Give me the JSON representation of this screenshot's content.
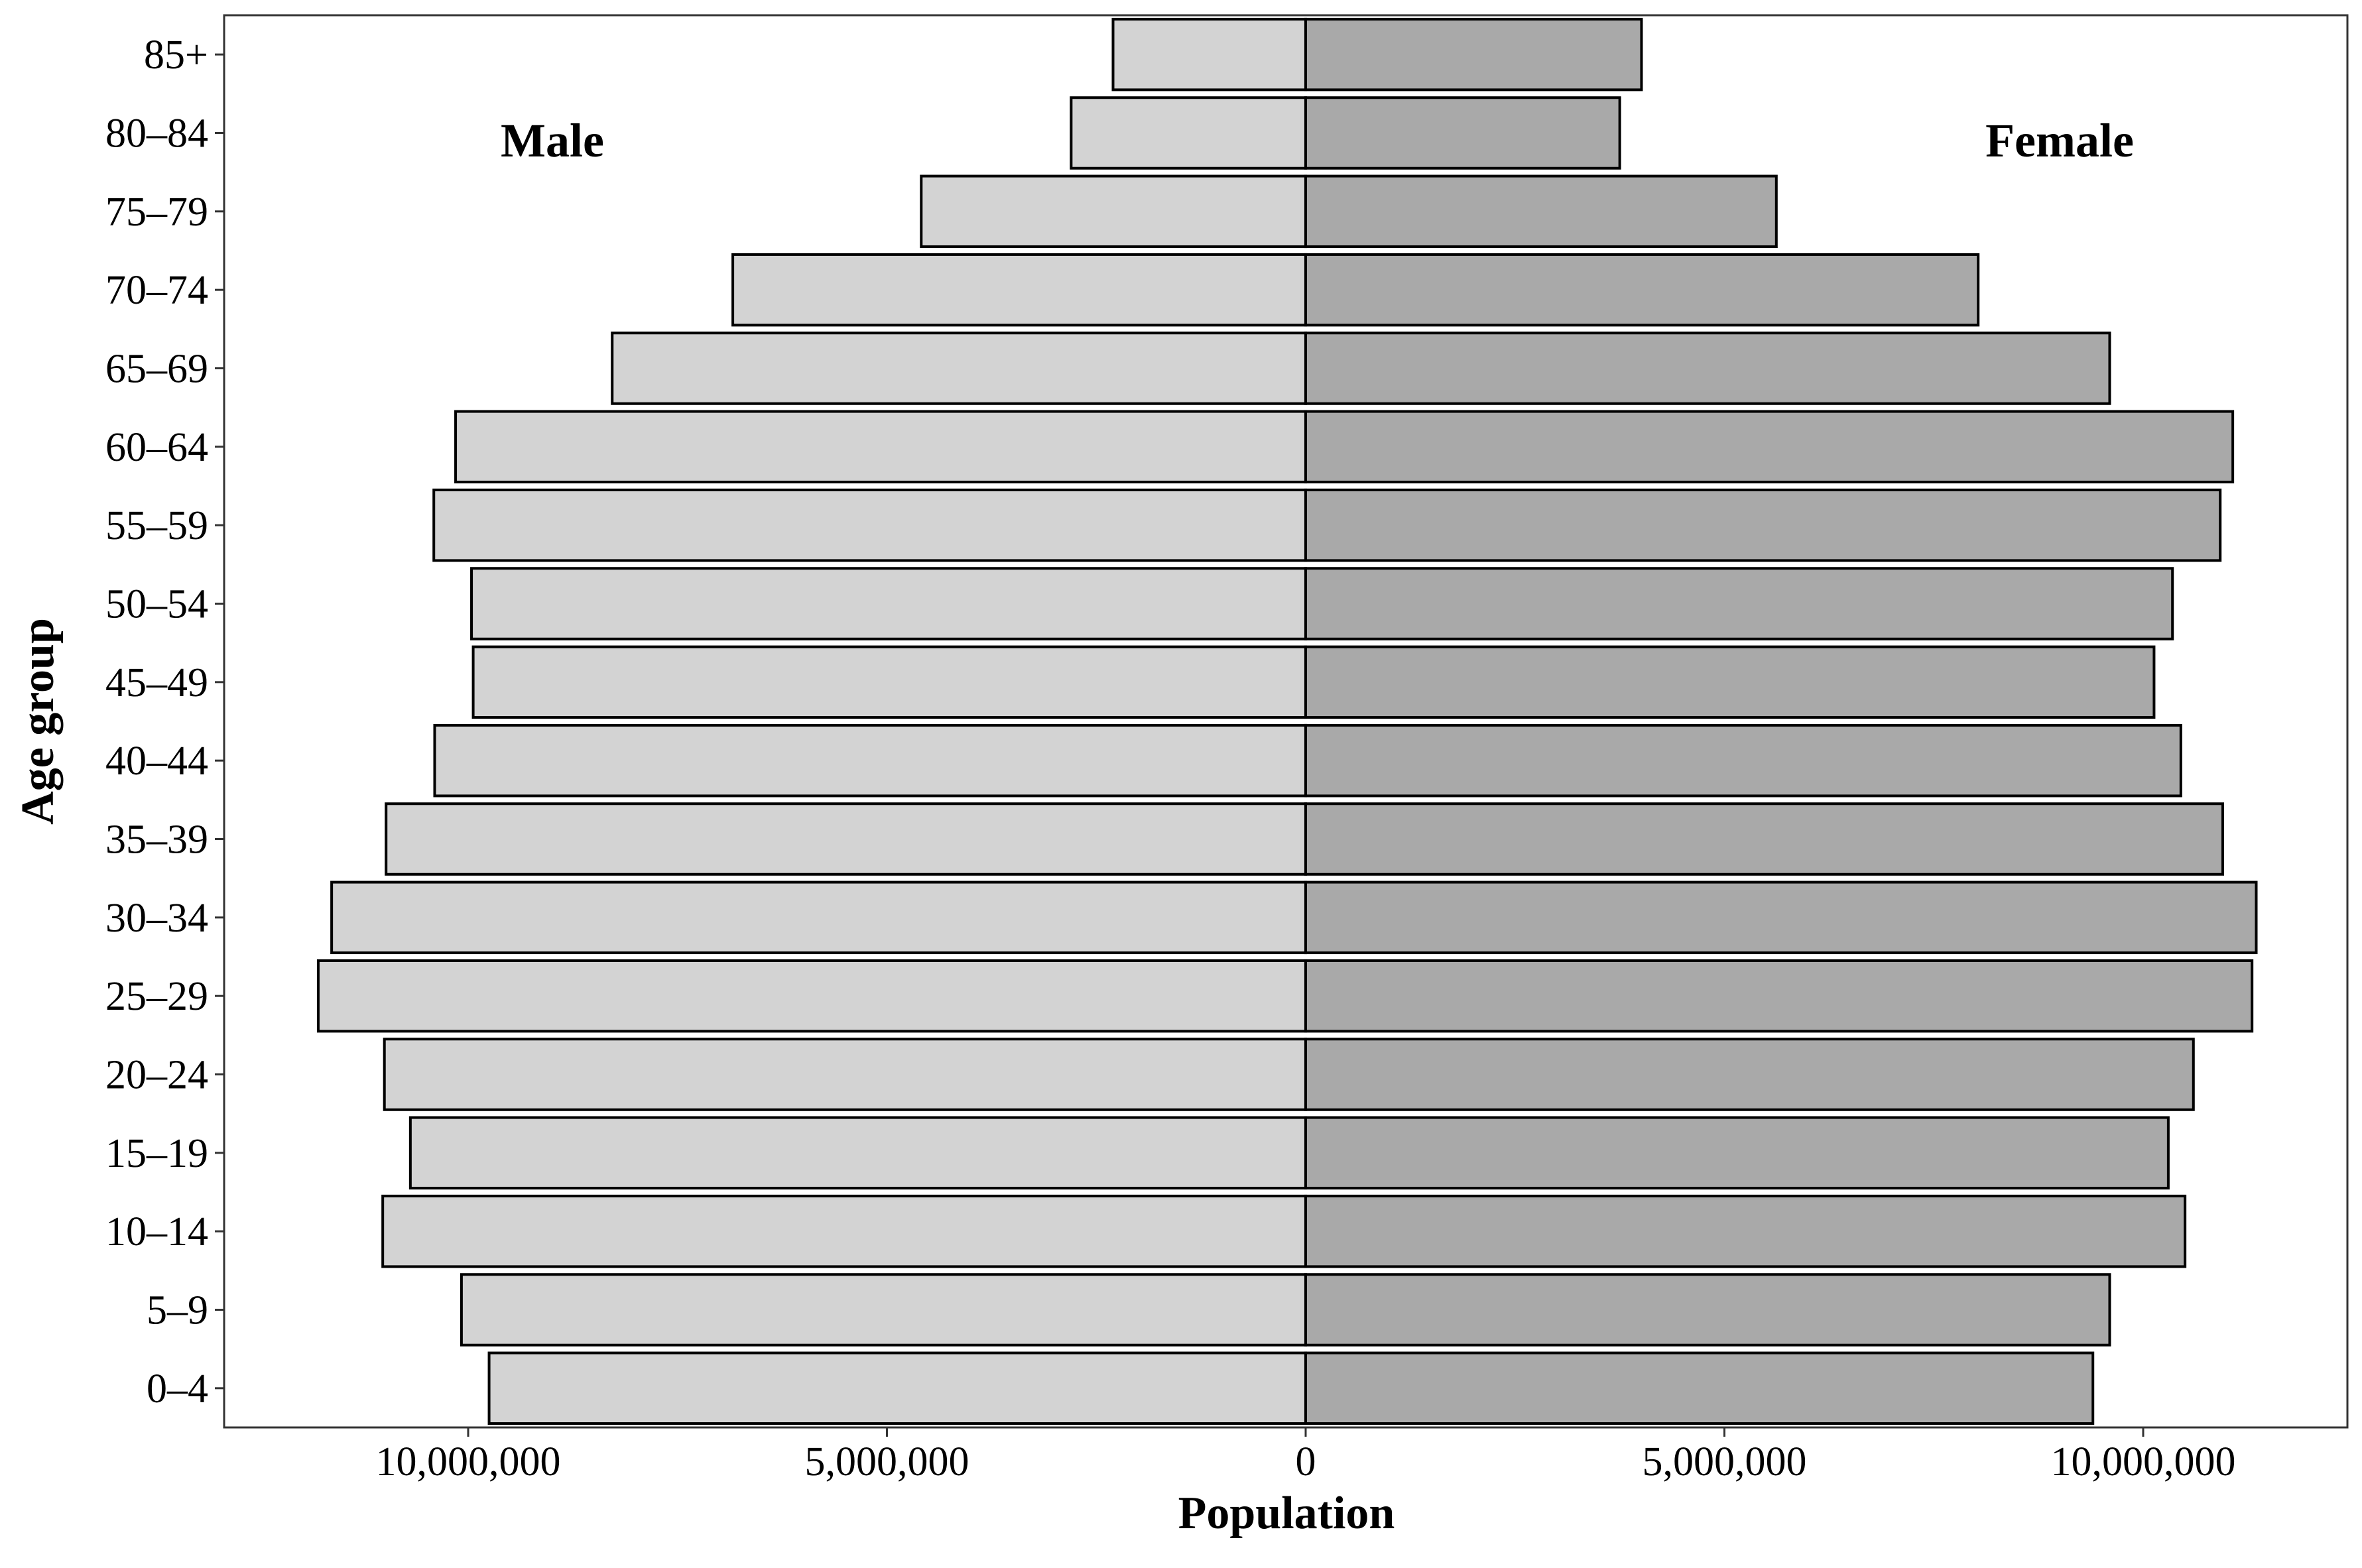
{
  "chart_data": {
    "type": "bar",
    "orientation": "horizontal",
    "layout": "population-pyramid",
    "categories": [
      "0–4",
      "5–9",
      "10–14",
      "15–19",
      "20–24",
      "25–29",
      "30–34",
      "35–39",
      "40–44",
      "45–49",
      "50–54",
      "55–59",
      "60–64",
      "65–69",
      "70–74",
      "75–79",
      "80–84",
      "85+"
    ],
    "series": [
      {
        "name": "Male",
        "color": "#d3d3d3",
        "values": [
          9750000,
          10080000,
          11020000,
          10690000,
          11000000,
          11790000,
          11630000,
          10980000,
          10400000,
          9940000,
          9960000,
          10410000,
          10150000,
          8280000,
          6840000,
          4590000,
          2800000,
          2300000
        ]
      },
      {
        "name": "Female",
        "color": "#a9a9a9",
        "values": [
          9400000,
          9600000,
          10500000,
          10300000,
          10600000,
          11300000,
          11350000,
          10950000,
          10450000,
          10130000,
          10350000,
          10920000,
          11070000,
          9600000,
          8030000,
          5620000,
          3750000,
          4010000
        ]
      }
    ],
    "xlabel": "Population",
    "ylabel": "Age group",
    "x_ticks": [
      {
        "value": -10000000,
        "label": "10,000,000"
      },
      {
        "value": -5000000,
        "label": "5,000,000"
      },
      {
        "value": 0,
        "label": "0"
      },
      {
        "value": 5000000,
        "label": "5,000,000"
      },
      {
        "value": 10000000,
        "label": "10,000,000"
      }
    ],
    "xlim": [
      -12950000,
      12450000
    ],
    "grid": false,
    "annotations": [
      {
        "text": "Male",
        "side": "left"
      },
      {
        "text": "Female",
        "side": "right"
      }
    ]
  }
}
